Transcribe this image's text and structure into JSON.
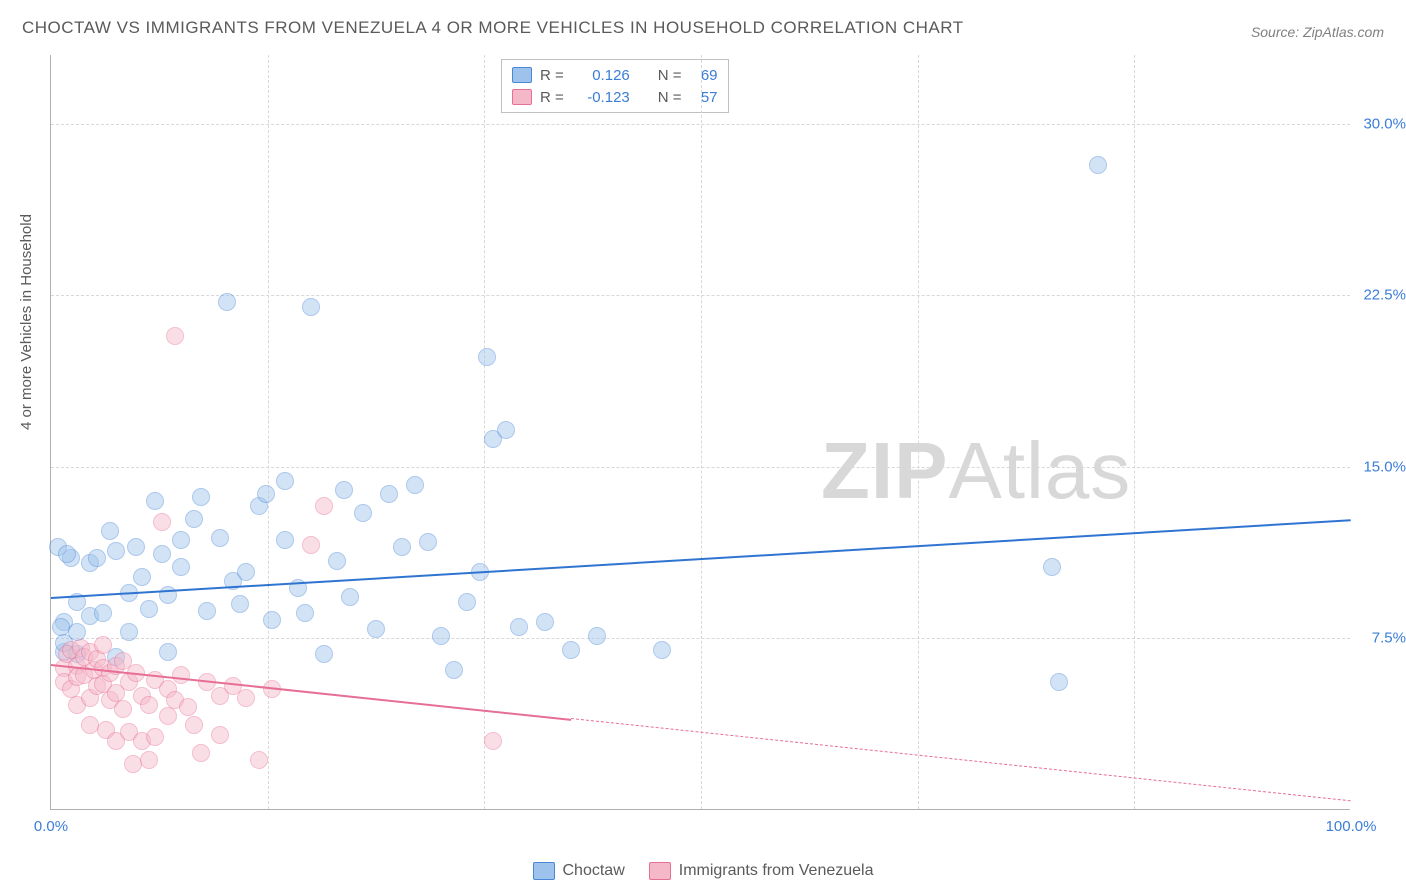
{
  "title": "CHOCTAW VS IMMIGRANTS FROM VENEZUELA 4 OR MORE VEHICLES IN HOUSEHOLD CORRELATION CHART",
  "source": "Source: ZipAtlas.com",
  "y_axis_label": "4 or more Vehicles in Household",
  "watermark_bold": "ZIP",
  "watermark_light": "Atlas",
  "chart": {
    "type": "scatter",
    "xlim": [
      0,
      100
    ],
    "ylim": [
      0,
      33
    ],
    "x_tick_positions": [
      0,
      16.67,
      33.33,
      50,
      66.67,
      83.33,
      100
    ],
    "x_tick_labels_shown": {
      "0": "0.0%",
      "100": "100.0%"
    },
    "y_ticks": [
      7.5,
      15.0,
      22.5,
      30.0
    ],
    "y_tick_labels": [
      "7.5%",
      "15.0%",
      "22.5%",
      "30.0%"
    ],
    "x_tick_label_color": "#3b7dd8",
    "y_tick_label_color": "#3b7dd8",
    "grid_color": "#d8d8d8",
    "background_color": "#ffffff",
    "marker_radius": 9,
    "marker_opacity": 0.45
  },
  "series": [
    {
      "name": "Choctaw",
      "color_fill": "#9dc3ed",
      "color_stroke": "#4a87d6",
      "trend_color": "#2f74d0",
      "trend": {
        "x0": 0,
        "y0": 9.3,
        "x1": 100,
        "y1": 12.7,
        "solid_until_x": 100
      },
      "stats": {
        "R_label": "R =",
        "R_value": "0.126",
        "N_label": "N =",
        "N_value": "69"
      },
      "points": [
        [
          1,
          8.2
        ],
        [
          2,
          7.8
        ],
        [
          2,
          9.1
        ],
        [
          1.5,
          11.0
        ],
        [
          0.5,
          11.5
        ],
        [
          1.2,
          11.2
        ],
        [
          0.8,
          8.0
        ],
        [
          1,
          6.9
        ],
        [
          2,
          6.8
        ],
        [
          3,
          8.5
        ],
        [
          3,
          10.8
        ],
        [
          3.5,
          11.0
        ],
        [
          4,
          8.6
        ],
        [
          4.5,
          12.2
        ],
        [
          5,
          11.3
        ],
        [
          5,
          6.7
        ],
        [
          6,
          7.8
        ],
        [
          6,
          9.5
        ],
        [
          6.5,
          11.5
        ],
        [
          7,
          10.2
        ],
        [
          7.5,
          8.8
        ],
        [
          8,
          13.5
        ],
        [
          8.5,
          11.2
        ],
        [
          9,
          9.4
        ],
        [
          9,
          6.9
        ],
        [
          10,
          11.8
        ],
        [
          10,
          10.6
        ],
        [
          11,
          12.7
        ],
        [
          11.5,
          13.7
        ],
        [
          12,
          8.7
        ],
        [
          13,
          11.9
        ],
        [
          13.5,
          22.2
        ],
        [
          14,
          10.0
        ],
        [
          14.5,
          9.0
        ],
        [
          15,
          10.4
        ],
        [
          16,
          13.3
        ],
        [
          16.5,
          13.8
        ],
        [
          17,
          8.3
        ],
        [
          18,
          11.8
        ],
        [
          18,
          14.4
        ],
        [
          19,
          9.7
        ],
        [
          19.5,
          8.6
        ],
        [
          20,
          22.0
        ],
        [
          21,
          6.8
        ],
        [
          22,
          10.9
        ],
        [
          22.5,
          14.0
        ],
        [
          23,
          9.3
        ],
        [
          24,
          13.0
        ],
        [
          25,
          7.9
        ],
        [
          26,
          13.8
        ],
        [
          27,
          11.5
        ],
        [
          28,
          14.2
        ],
        [
          29,
          11.7
        ],
        [
          30,
          7.6
        ],
        [
          31,
          6.1
        ],
        [
          32,
          9.1
        ],
        [
          33,
          10.4
        ],
        [
          33.5,
          19.8
        ],
        [
          34,
          16.2
        ],
        [
          35,
          16.6
        ],
        [
          36,
          8.0
        ],
        [
          38,
          8.2
        ],
        [
          40,
          7.0
        ],
        [
          42,
          7.6
        ],
        [
          47,
          7.0
        ],
        [
          77,
          10.6
        ],
        [
          77.5,
          5.6
        ],
        [
          80.5,
          28.2
        ],
        [
          1,
          7.3
        ]
      ]
    },
    {
      "name": "Immigrants from Venezuela",
      "color_fill": "#f4b8c8",
      "color_stroke": "#e76f95",
      "trend_color": "#e76f95",
      "trend": {
        "x0": 0,
        "y0": 6.4,
        "x1": 100,
        "y1": 0.4,
        "solid_until_x": 40
      },
      "stats": {
        "R_label": "R =",
        "R_value": "-0.123",
        "N_label": "N =",
        "N_value": "57"
      },
      "points": [
        [
          1,
          6.2
        ],
        [
          1,
          5.6
        ],
        [
          1.2,
          6.8
        ],
        [
          1.5,
          5.3
        ],
        [
          1.5,
          7.0
        ],
        [
          2,
          6.3
        ],
        [
          2,
          5.8
        ],
        [
          2,
          4.6
        ],
        [
          2.3,
          7.1
        ],
        [
          2.5,
          6.7
        ],
        [
          2.5,
          5.9
        ],
        [
          3,
          6.9
        ],
        [
          3,
          4.9
        ],
        [
          3,
          3.7
        ],
        [
          3.3,
          6.1
        ],
        [
          3.5,
          5.4
        ],
        [
          3.5,
          6.6
        ],
        [
          4,
          6.2
        ],
        [
          4,
          5.5
        ],
        [
          4,
          7.2
        ],
        [
          4.2,
          3.5
        ],
        [
          4.5,
          4.8
        ],
        [
          4.5,
          6.0
        ],
        [
          5,
          5.1
        ],
        [
          5,
          6.3
        ],
        [
          5,
          3.0
        ],
        [
          5.5,
          6.5
        ],
        [
          5.5,
          4.4
        ],
        [
          6,
          5.6
        ],
        [
          6,
          3.4
        ],
        [
          6.3,
          2.0
        ],
        [
          6.5,
          6.0
        ],
        [
          7,
          3.0
        ],
        [
          7,
          5.0
        ],
        [
          7.5,
          4.6
        ],
        [
          7.5,
          2.2
        ],
        [
          8,
          5.7
        ],
        [
          8,
          3.2
        ],
        [
          8.5,
          12.6
        ],
        [
          9,
          5.3
        ],
        [
          9,
          4.1
        ],
        [
          9.5,
          4.8
        ],
        [
          9.5,
          20.7
        ],
        [
          10,
          5.9
        ],
        [
          10.5,
          4.5
        ],
        [
          11,
          3.7
        ],
        [
          11.5,
          2.5
        ],
        [
          12,
          5.6
        ],
        [
          13,
          5.0
        ],
        [
          13,
          3.3
        ],
        [
          14,
          5.4
        ],
        [
          15,
          4.9
        ],
        [
          16,
          2.2
        ],
        [
          17,
          5.3
        ],
        [
          20,
          11.6
        ],
        [
          21,
          13.3
        ],
        [
          34,
          3.0
        ]
      ]
    }
  ],
  "legend_bottom": [
    {
      "label": "Choctaw",
      "fill": "#9dc3ed",
      "stroke": "#4a87d6"
    },
    {
      "label": "Immigrants from Venezuela",
      "fill": "#f4b8c8",
      "stroke": "#e76f95"
    }
  ]
}
